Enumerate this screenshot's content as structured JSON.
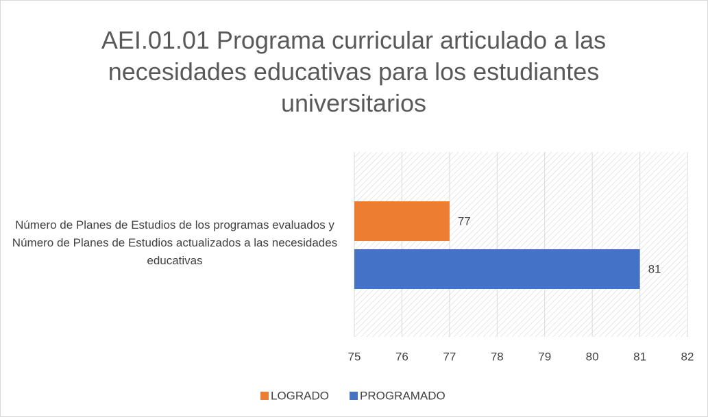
{
  "chart_data": {
    "type": "bar",
    "orientation": "horizontal",
    "title": "AEI.01.01 Programa curricular articulado a las necesidades educativas para los estudiantes universitarios",
    "categories": [
      "Número de Planes de Estudios de los programas evaluados y Número de Planes de Estudios actualizados a las necesidades educativas"
    ],
    "series": [
      {
        "name": "LOGRADO",
        "color": "#ed7d31",
        "values": [
          77
        ]
      },
      {
        "name": "PROGRAMADO",
        "color": "#4472c4",
        "values": [
          81
        ]
      }
    ],
    "xlim": [
      75,
      82
    ],
    "xticks": [
      75,
      76,
      77,
      78,
      79,
      80,
      81,
      82
    ],
    "grid": true,
    "legend": "bottom"
  }
}
